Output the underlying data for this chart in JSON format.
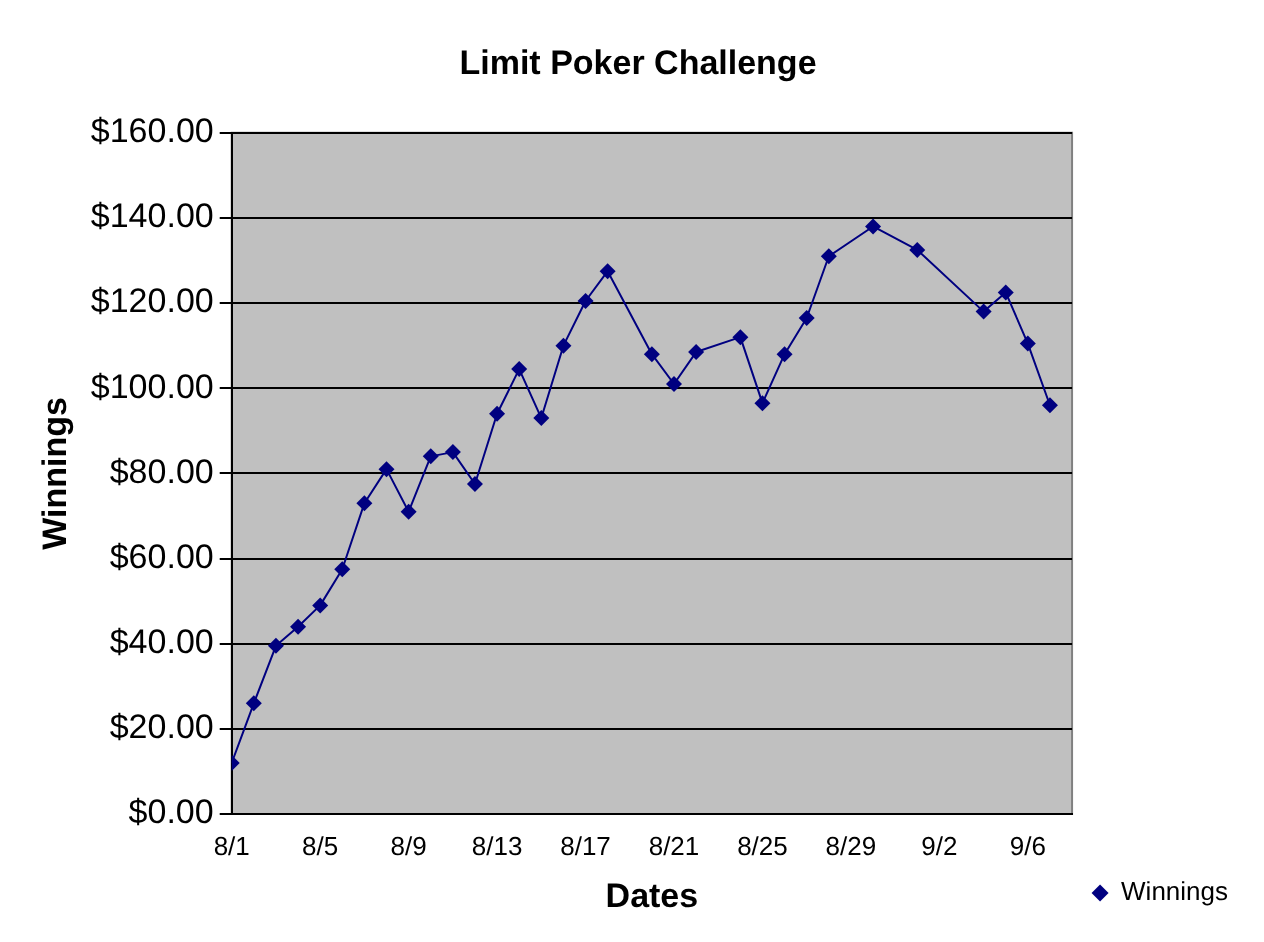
{
  "chart_data": {
    "type": "line",
    "title": "Limit Poker Challenge",
    "xlabel": "Dates",
    "ylabel": "Winnings",
    "x": [
      "--08-01",
      "--08-02",
      "--08-03",
      "--08-04",
      "--08-05",
      "--08-06",
      "--08-07",
      "--08-08",
      "--08-09",
      "--08-10",
      "--08-11",
      "--08-12",
      "--08-13",
      "--08-14",
      "--08-15",
      "--08-16",
      "--08-17",
      "--08-18",
      "--08-20",
      "--08-21",
      "--08-22",
      "--08-24",
      "--08-25",
      "--08-26",
      "--08-27",
      "--08-28",
      "--08-30",
      "--09-01",
      "--09-04",
      "--09-05",
      "--09-06",
      "--09-07"
    ],
    "series": [
      {
        "name": "Winnings",
        "color": "#000080",
        "values": [
          12,
          26,
          39.5,
          44,
          49,
          57.5,
          73,
          81,
          71,
          84,
          85,
          77.5,
          94,
          104.5,
          93,
          110,
          120.5,
          127.5,
          108,
          101,
          108.5,
          112,
          96.5,
          108,
          116.5,
          131,
          138,
          132.5,
          118,
          122.5,
          110.5,
          96
        ]
      }
    ],
    "xlim": [
      "--08-01",
      "--09-08"
    ],
    "xticks": [
      {
        "value": "--08-01",
        "label": "8/1"
      },
      {
        "value": "--08-05",
        "label": "8/5"
      },
      {
        "value": "--08-09",
        "label": "8/9"
      },
      {
        "value": "--08-13",
        "label": "8/13"
      },
      {
        "value": "--08-17",
        "label": "8/17"
      },
      {
        "value": "--08-21",
        "label": "8/21"
      },
      {
        "value": "--08-25",
        "label": "8/25"
      },
      {
        "value": "--08-29",
        "label": "8/29"
      },
      {
        "value": "--09-02",
        "label": "9/2"
      },
      {
        "value": "--09-06",
        "label": "9/6"
      }
    ],
    "ylim": [
      0,
      160
    ],
    "yticks": [
      {
        "value": 0,
        "label": "$0.00"
      },
      {
        "value": 20,
        "label": "$20.00"
      },
      {
        "value": 40,
        "label": "$40.00"
      },
      {
        "value": 60,
        "label": "$60.00"
      },
      {
        "value": 80,
        "label": "$80.00"
      },
      {
        "value": 100,
        "label": "$100.00"
      },
      {
        "value": 120,
        "label": "$120.00"
      },
      {
        "value": 140,
        "label": "$140.00"
      },
      {
        "value": 160,
        "label": "$160.00"
      }
    ],
    "grid": "y",
    "legend": "bottom right",
    "marker": "diamond",
    "line_style": "solid"
  }
}
